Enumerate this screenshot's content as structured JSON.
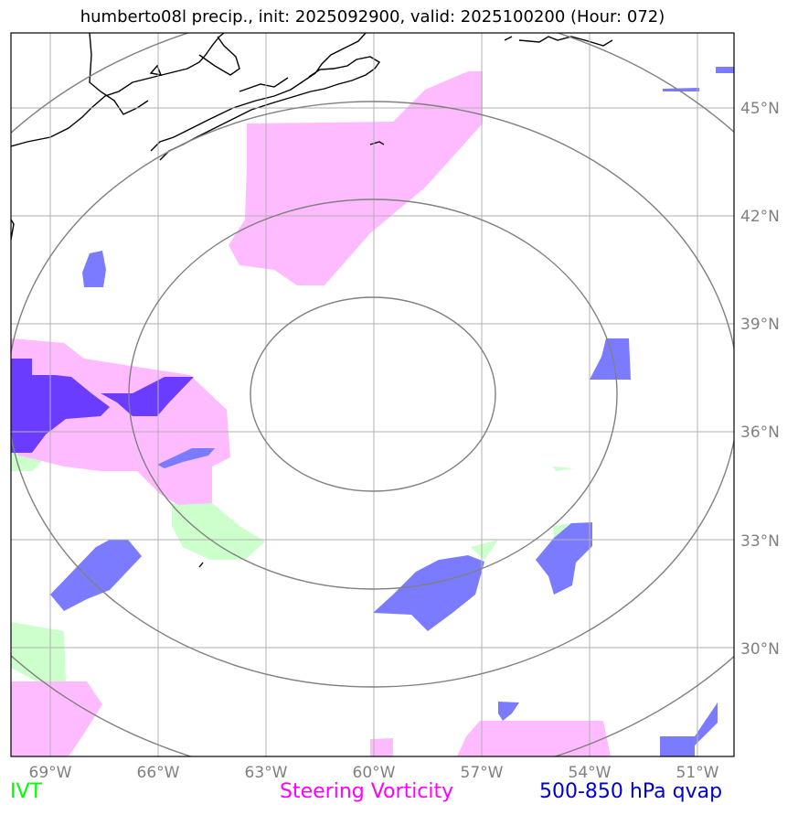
{
  "title": "humberto08l precip., init: 2025092900, valid: 2025100200 (Hour: 072)",
  "lat_labels": [
    "45°N",
    "42°N",
    "39°N",
    "36°N",
    "33°N",
    "30°N"
  ],
  "lon_labels": [
    "69°W",
    "66°W",
    "63°W",
    "60°W",
    "57°W",
    "54°W",
    "51°W"
  ],
  "legend": {
    "ivt": {
      "label": "IVT",
      "color": "#00ff00"
    },
    "vorticity": {
      "label": "Steering Vorticity",
      "color": "#ff00ff"
    },
    "qvap": {
      "label": "500-850 hPa qvap",
      "color": "#0000cc"
    }
  },
  "colors": {
    "ivt_fill": "#ccffcc",
    "vorticity_fill": "#ffbbff",
    "qvap_fill": "#7b7bff",
    "qvap_dark": "#6a3cff",
    "coast": "#000000",
    "grid": "#b0b0b0",
    "range_rings": "#808080"
  },
  "map_extent": {
    "lon_min": -70,
    "lon_max": -50,
    "lat_min": 27,
    "lat_max": 47
  },
  "range_rings_count": 4
}
